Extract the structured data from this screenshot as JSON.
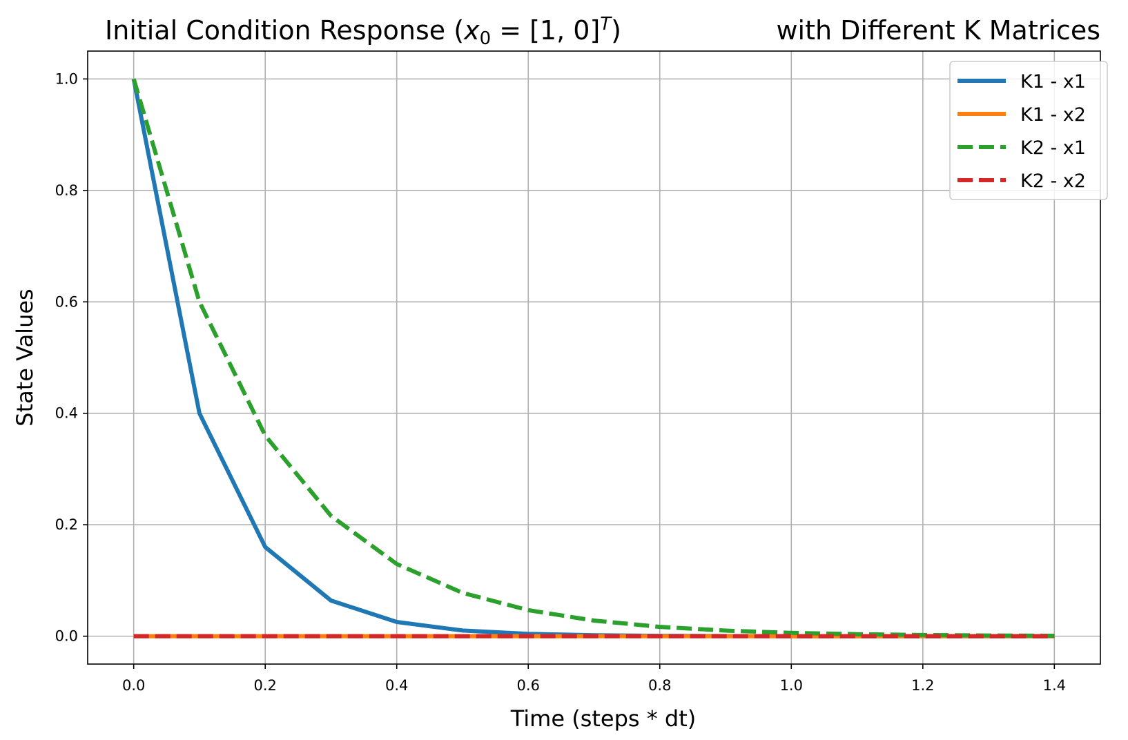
{
  "chart_data": {
    "type": "line",
    "title": {
      "prefix": "Initial Condition Response (",
      "math_x": "x",
      "math_sub": "0",
      "math_mid": " = [1, 0]",
      "math_sup": "T",
      "suffix": ")",
      "tail": "with Different K Matrices"
    },
    "xlabel": "Time (steps * dt)",
    "ylabel": "State Values",
    "xlim": [
      -0.07,
      1.47
    ],
    "ylim": [
      -0.05,
      1.05
    ],
    "xticks": [
      0.0,
      0.2,
      0.4,
      0.6,
      0.8,
      1.0,
      1.2,
      1.4
    ],
    "xtick_labels": [
      "0.0",
      "0.2",
      "0.4",
      "0.6",
      "0.8",
      "1.0",
      "1.2",
      "1.4"
    ],
    "yticks": [
      0.0,
      0.2,
      0.4,
      0.6,
      0.8,
      1.0
    ],
    "ytick_labels": [
      "0.0",
      "0.2",
      "0.4",
      "0.6",
      "0.8",
      "1.0"
    ],
    "grid": true,
    "legend_position": "upper-right",
    "x": [
      0.0,
      0.1,
      0.2,
      0.3,
      0.4,
      0.5,
      0.6,
      0.7,
      0.8,
      0.9,
      1.0,
      1.1,
      1.2,
      1.3,
      1.4
    ],
    "series": [
      {
        "name": "K1 - x1",
        "color": "#1f77b4",
        "dash": "solid",
        "values": [
          1.0,
          0.4,
          0.16,
          0.064,
          0.0256,
          0.0102,
          0.0041,
          0.0016,
          0.0007,
          0.0003,
          0.0001,
          0.0,
          0.0,
          0.0,
          0.0
        ]
      },
      {
        "name": "K1 - x2",
        "color": "#ff7f0e",
        "dash": "solid",
        "values": [
          0,
          0,
          0,
          0,
          0,
          0,
          0,
          0,
          0,
          0,
          0,
          0,
          0,
          0,
          0
        ]
      },
      {
        "name": "K2 - x1",
        "color": "#2ca02c",
        "dash": "dashed",
        "values": [
          1.0,
          0.6,
          0.36,
          0.216,
          0.1296,
          0.0778,
          0.0467,
          0.028,
          0.0168,
          0.0101,
          0.006,
          0.0036,
          0.0022,
          0.0013,
          0.0008
        ]
      },
      {
        "name": "K2 - x2",
        "color": "#d62728",
        "dash": "dashed",
        "values": [
          0,
          0,
          0,
          0,
          0,
          0,
          0,
          0,
          0,
          0,
          0,
          0,
          0,
          0,
          0
        ]
      }
    ]
  }
}
